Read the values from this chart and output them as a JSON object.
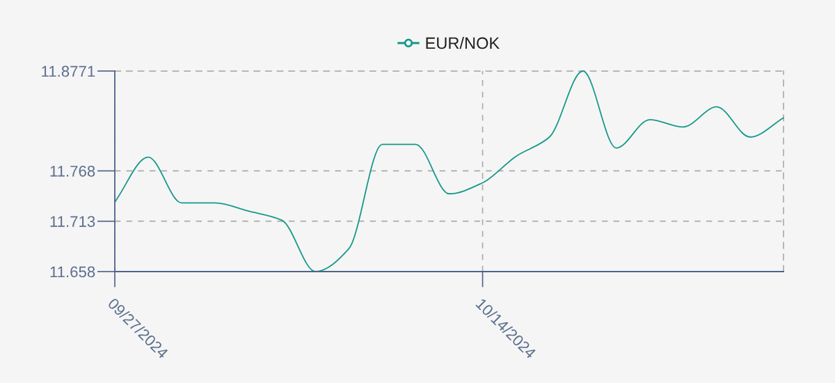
{
  "chart_data": {
    "type": "line",
    "categories": [
      "09/27/2024",
      null,
      null,
      null,
      null,
      null,
      null,
      null,
      null,
      null,
      null,
      "10/14/2024",
      null,
      null,
      null,
      null,
      null,
      null,
      null,
      null,
      null
    ],
    "series": [
      {
        "name": "EUR/NOK",
        "color": "#16998a",
        "values": [
          11.734,
          11.783,
          11.733,
          11.733,
          11.724,
          11.714,
          11.658,
          11.683,
          11.797,
          11.797,
          11.743,
          11.755,
          11.784,
          11.805,
          11.8771,
          11.793,
          11.824,
          11.816,
          11.838,
          11.805,
          11.826
        ]
      }
    ],
    "ylim": [
      11.658,
      11.8771
    ],
    "yticks": [
      11.658,
      11.713,
      11.768,
      11.8771
    ],
    "grid": true,
    "legend": "top"
  }
}
